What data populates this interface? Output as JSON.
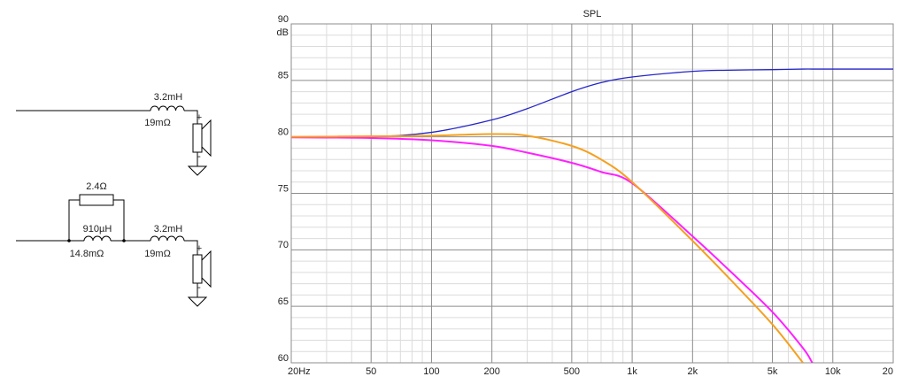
{
  "chart_data": {
    "type": "line",
    "title": "SPL",
    "y_label": "dB",
    "x_log": true,
    "grid": true,
    "xlim": [
      20,
      20000
    ],
    "ylim": [
      60,
      90
    ],
    "xticks": [
      {
        "value": 20,
        "label": "20Hz"
      },
      50,
      100,
      200,
      500,
      {
        "value": 1000,
        "label": "1k"
      },
      {
        "value": 2000,
        "label": "2k"
      },
      {
        "value": 5000,
        "label": "5k"
      },
      {
        "value": 10000,
        "label": "10k"
      },
      {
        "value": 20000,
        "label": "20"
      }
    ],
    "yticks": [
      60,
      65,
      70,
      75,
      80,
      85,
      90
    ],
    "x_minor_grid": [
      30,
      40,
      60,
      70,
      80,
      90,
      300,
      400,
      600,
      700,
      800,
      900,
      3000,
      4000,
      6000,
      7000,
      8000,
      9000
    ],
    "y_minor_grid": [
      61,
      62,
      63,
      64,
      66,
      67,
      68,
      69,
      71,
      72,
      73,
      74,
      76,
      77,
      78,
      79,
      81,
      82,
      83,
      84,
      86,
      87,
      88,
      89
    ],
    "x": [
      20,
      50,
      100,
      200,
      300,
      500,
      700,
      1000,
      2000,
      3000,
      5000,
      7100,
      7900,
      10000,
      20000
    ],
    "series": [
      {
        "color": "#2525c8",
        "values": [
          79.95,
          80,
          80.4,
          81.5,
          82.5,
          84,
          84.8,
          85.3,
          85.8,
          85.9,
          85.95,
          86,
          86,
          86,
          86
        ]
      },
      {
        "color": "#ff20ff",
        "values": [
          79.95,
          79.9,
          79.7,
          79.2,
          78.6,
          77.7,
          76.9,
          75.9,
          71.2,
          68.3,
          64.5,
          61.3,
          60,
          null,
          null
        ]
      },
      {
        "color": "#f5a020",
        "values": [
          80,
          80.05,
          80.1,
          80.25,
          80.1,
          79.2,
          78,
          76,
          70.8,
          67.6,
          63.4,
          60,
          null,
          null,
          null
        ]
      }
    ]
  },
  "schematic": {
    "branch1": {
      "inductor": "3.2mH",
      "resistance": "19mΩ",
      "plus": "+",
      "minus": "-"
    },
    "branch2": {
      "resistor": "2.4Ω",
      "parallel_inductor": "910µH",
      "parallel_resistance": "14.8mΩ",
      "inductor": "3.2mH",
      "resistance": "19mΩ",
      "plus": "+",
      "minus": "-"
    }
  }
}
